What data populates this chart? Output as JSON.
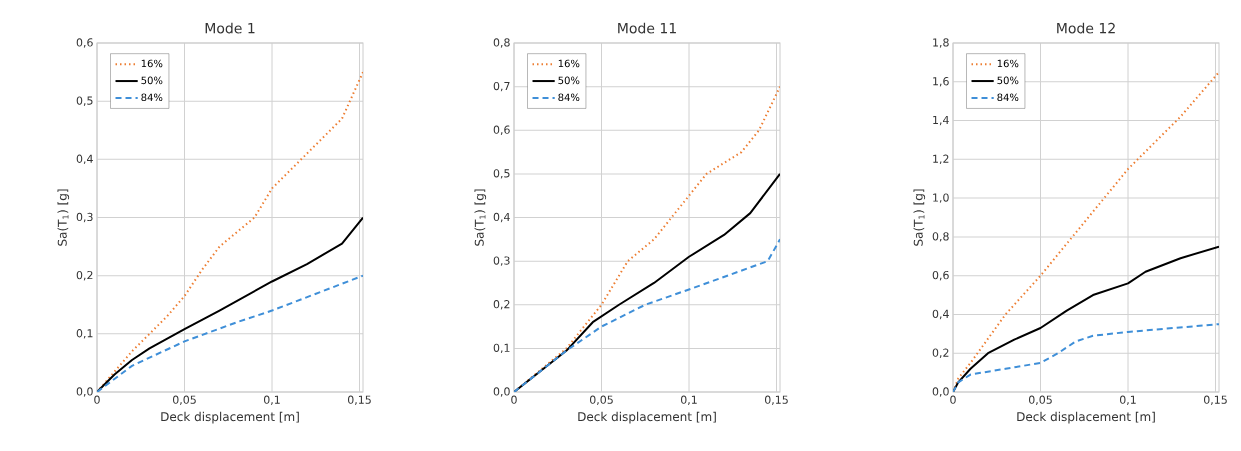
{
  "chart_data": [
    {
      "type": "line",
      "title": "Mode 1",
      "xlabel": "Deck displacement [m]",
      "ylabel": "Sa(T$_{1}$) [g]",
      "grid": true,
      "legend": "top left",
      "xlim": [
        0,
        0.152
      ],
      "xticks": [
        {
          "value": 0,
          "label": "0"
        },
        {
          "value": 0.05,
          "label": "0,05"
        },
        {
          "value": 0.1,
          "label": "0,1"
        },
        {
          "value": 0.15,
          "label": "0,15"
        }
      ],
      "ylim": [
        0,
        0.6
      ],
      "yticks": [
        {
          "value": 0,
          "label": "0,0"
        },
        {
          "value": 0.1,
          "label": "0,1"
        },
        {
          "value": 0.2,
          "label": "0,2"
        },
        {
          "value": 0.3,
          "label": "0,3"
        },
        {
          "value": 0.4,
          "label": "0,4"
        },
        {
          "value": 0.5,
          "label": "0,5"
        },
        {
          "value": 0.6,
          "label": "0,6"
        }
      ],
      "series": [
        {
          "name": "16%",
          "color": "#ed7d31",
          "line_style": "dotted",
          "x": [
            0,
            0.02,
            0.04,
            0.05,
            0.06,
            0.07,
            0.09,
            0.1,
            0.12,
            0.14,
            0.152
          ],
          "values": [
            0,
            0.07,
            0.13,
            0.165,
            0.21,
            0.25,
            0.3,
            0.35,
            0.41,
            0.47,
            0.55
          ]
        },
        {
          "name": "50%",
          "color": "#000000",
          "line_style": "solid",
          "x": [
            0,
            0.01,
            0.02,
            0.03,
            0.05,
            0.07,
            0.1,
            0.12,
            0.14,
            0.152
          ],
          "values": [
            0,
            0.03,
            0.055,
            0.075,
            0.108,
            0.14,
            0.19,
            0.22,
            0.255,
            0.3
          ]
        },
        {
          "name": "84%",
          "color": "#3f8fd8",
          "line_style": "dashed",
          "x": [
            0,
            0.02,
            0.05,
            0.08,
            0.1,
            0.152
          ],
          "values": [
            0,
            0.045,
            0.087,
            0.12,
            0.14,
            0.2
          ]
        }
      ]
    },
    {
      "type": "line",
      "title": "Mode 11",
      "xlabel": "Deck displacement [m]",
      "ylabel": "Sa(T$_{1}$) [g]",
      "grid": true,
      "legend": "top left",
      "xlim": [
        0,
        0.152
      ],
      "xticks": [
        {
          "value": 0,
          "label": "0"
        },
        {
          "value": 0.05,
          "label": "0,05"
        },
        {
          "value": 0.1,
          "label": "0,1"
        },
        {
          "value": 0.15,
          "label": "0,15"
        }
      ],
      "ylim": [
        0,
        0.8
      ],
      "yticks": [
        {
          "value": 0,
          "label": "0,0"
        },
        {
          "value": 0.1,
          "label": "0,1"
        },
        {
          "value": 0.2,
          "label": "0,2"
        },
        {
          "value": 0.3,
          "label": "0,3"
        },
        {
          "value": 0.4,
          "label": "0,4"
        },
        {
          "value": 0.5,
          "label": "0,5"
        },
        {
          "value": 0.6,
          "label": "0,6"
        },
        {
          "value": 0.7,
          "label": "0,7"
        },
        {
          "value": 0.8,
          "label": "0,8"
        }
      ],
      "series": [
        {
          "name": "16%",
          "color": "#ed7d31",
          "line_style": "dotted",
          "x": [
            0,
            0.03,
            0.05,
            0.065,
            0.08,
            0.09,
            0.1,
            0.11,
            0.13,
            0.14,
            0.152
          ],
          "values": [
            0,
            0.1,
            0.2,
            0.3,
            0.35,
            0.4,
            0.45,
            0.5,
            0.55,
            0.6,
            0.7
          ]
        },
        {
          "name": "50%",
          "color": "#000000",
          "line_style": "solid",
          "x": [
            0,
            0.03,
            0.045,
            0.06,
            0.08,
            0.1,
            0.12,
            0.135,
            0.152
          ],
          "values": [
            0,
            0.095,
            0.16,
            0.2,
            0.25,
            0.31,
            0.36,
            0.41,
            0.5
          ]
        },
        {
          "name": "84%",
          "color": "#3f8fd8",
          "line_style": "dashed",
          "x": [
            0,
            0.03,
            0.05,
            0.075,
            0.1,
            0.145,
            0.152
          ],
          "values": [
            0,
            0.095,
            0.15,
            0.2,
            0.235,
            0.3,
            0.35
          ]
        }
      ]
    },
    {
      "type": "line",
      "title": "Mode 12",
      "xlabel": "Deck displacement [m]",
      "ylabel": "Sa(T$_{1}$) [g]",
      "grid": true,
      "legend": "top left",
      "xlim": [
        0,
        0.152
      ],
      "xticks": [
        {
          "value": 0,
          "label": "0"
        },
        {
          "value": 0.05,
          "label": "0,05"
        },
        {
          "value": 0.1,
          "label": "0,1"
        },
        {
          "value": 0.15,
          "label": "0,15"
        }
      ],
      "ylim": [
        0,
        1.8
      ],
      "yticks": [
        {
          "value": 0,
          "label": "0,0"
        },
        {
          "value": 0.2,
          "label": "0,2"
        },
        {
          "value": 0.4,
          "label": "0,4"
        },
        {
          "value": 0.6,
          "label": "0,6"
        },
        {
          "value": 0.8,
          "label": "0,8"
        },
        {
          "value": 1.0,
          "label": "1,0"
        },
        {
          "value": 1.2,
          "label": "1,2"
        },
        {
          "value": 1.4,
          "label": "1,4"
        },
        {
          "value": 1.6,
          "label": "1,6"
        },
        {
          "value": 1.8,
          "label": "1,8"
        }
      ],
      "series": [
        {
          "name": "16%",
          "color": "#ed7d31",
          "line_style": "dotted",
          "x": [
            0,
            0.003,
            0.01,
            0.03,
            0.05,
            0.07,
            0.1,
            0.13,
            0.152
          ],
          "values": [
            0,
            0.07,
            0.15,
            0.4,
            0.6,
            0.82,
            1.15,
            1.42,
            1.65
          ]
        },
        {
          "name": "50%",
          "color": "#000000",
          "line_style": "solid",
          "x": [
            0,
            0.003,
            0.01,
            0.02,
            0.035,
            0.05,
            0.065,
            0.08,
            0.1,
            0.11,
            0.13,
            0.152
          ],
          "values": [
            0,
            0.05,
            0.12,
            0.2,
            0.27,
            0.33,
            0.42,
            0.5,
            0.56,
            0.62,
            0.69,
            0.75
          ]
        },
        {
          "name": "84%",
          "color": "#3f8fd8",
          "line_style": "dashed",
          "x": [
            0,
            0.003,
            0.01,
            0.03,
            0.05,
            0.06,
            0.07,
            0.08,
            0.1,
            0.152
          ],
          "values": [
            0,
            0.05,
            0.09,
            0.12,
            0.15,
            0.2,
            0.26,
            0.29,
            0.31,
            0.35
          ]
        }
      ]
    }
  ]
}
